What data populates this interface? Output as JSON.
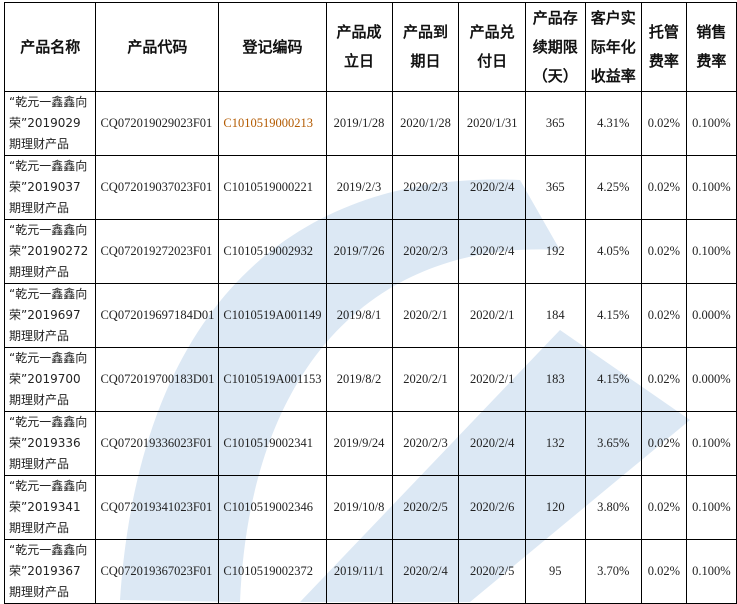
{
  "headers": [
    "产品名称",
    "产品代码",
    "登记编码",
    "产品成立日",
    "产品到期日",
    "产品兑付日",
    "产品存续期限（天）",
    "客户实际年化收益率",
    "托管费率",
    "销售费率"
  ],
  "rows": [
    [
      "“乾元一鑫鑫向荣”2019029期理财产品",
      "CQ072019029023F01",
      "C1010519000213",
      "2019/1/28",
      "2020/1/28",
      "2020/1/31",
      "365",
      "4.31%",
      "0.02%",
      "0.100%"
    ],
    [
      "“乾元一鑫鑫向荣”2019037期理财产品",
      "CQ072019037023F01",
      "C1010519000221",
      "2019/2/3",
      "2020/2/3",
      "2020/2/4",
      "365",
      "4.25%",
      "0.02%",
      "0.100%"
    ],
    [
      "“乾元一鑫鑫向荣”20190272期理财产品",
      "CQ072019272023F01",
      "C1010519002932",
      "2019/7/26",
      "2020/2/3",
      "2020/2/4",
      "192",
      "4.05%",
      "0.02%",
      "0.100%"
    ],
    [
      "“乾元一鑫鑫向荣”2019697期理财产品",
      "CQ072019697184D01",
      "C1010519A001149",
      "2019/8/1",
      "2020/2/1",
      "2020/2/1",
      "184",
      "4.15%",
      "0.02%",
      "0.000%"
    ],
    [
      "“乾元一鑫鑫向荣”2019700期理财产品",
      "CQ072019700183D01",
      "C1010519A001153",
      "2019/8/2",
      "2020/2/1",
      "2020/2/1",
      "183",
      "4.15%",
      "0.02%",
      "0.000%"
    ],
    [
      "“乾元一鑫鑫向荣”2019336期理财产品",
      "CQ072019336023F01",
      "C1010519002341",
      "2019/9/24",
      "2020/2/3",
      "2020/2/4",
      "132",
      "3.65%",
      "0.02%",
      "0.100%"
    ],
    [
      "“乾元一鑫鑫向荣”2019341期理财产品",
      "CQ072019341023F01",
      "C1010519002346",
      "2019/10/8",
      "2020/2/5",
      "2020/2/6",
      "120",
      "3.80%",
      "0.02%",
      "0.100%"
    ],
    [
      "“乾元一鑫鑫向荣”2019367期理财产品",
      "CQ072019367023F01",
      "C1010519002372",
      "2019/11/1",
      "2020/2/4",
      "2020/2/5",
      "95",
      "3.70%",
      "0.02%",
      "0.100%"
    ]
  ],
  "colors": {
    "watermark": "#dce8f4",
    "border": "#000000",
    "accent_text": "#b35a00"
  }
}
